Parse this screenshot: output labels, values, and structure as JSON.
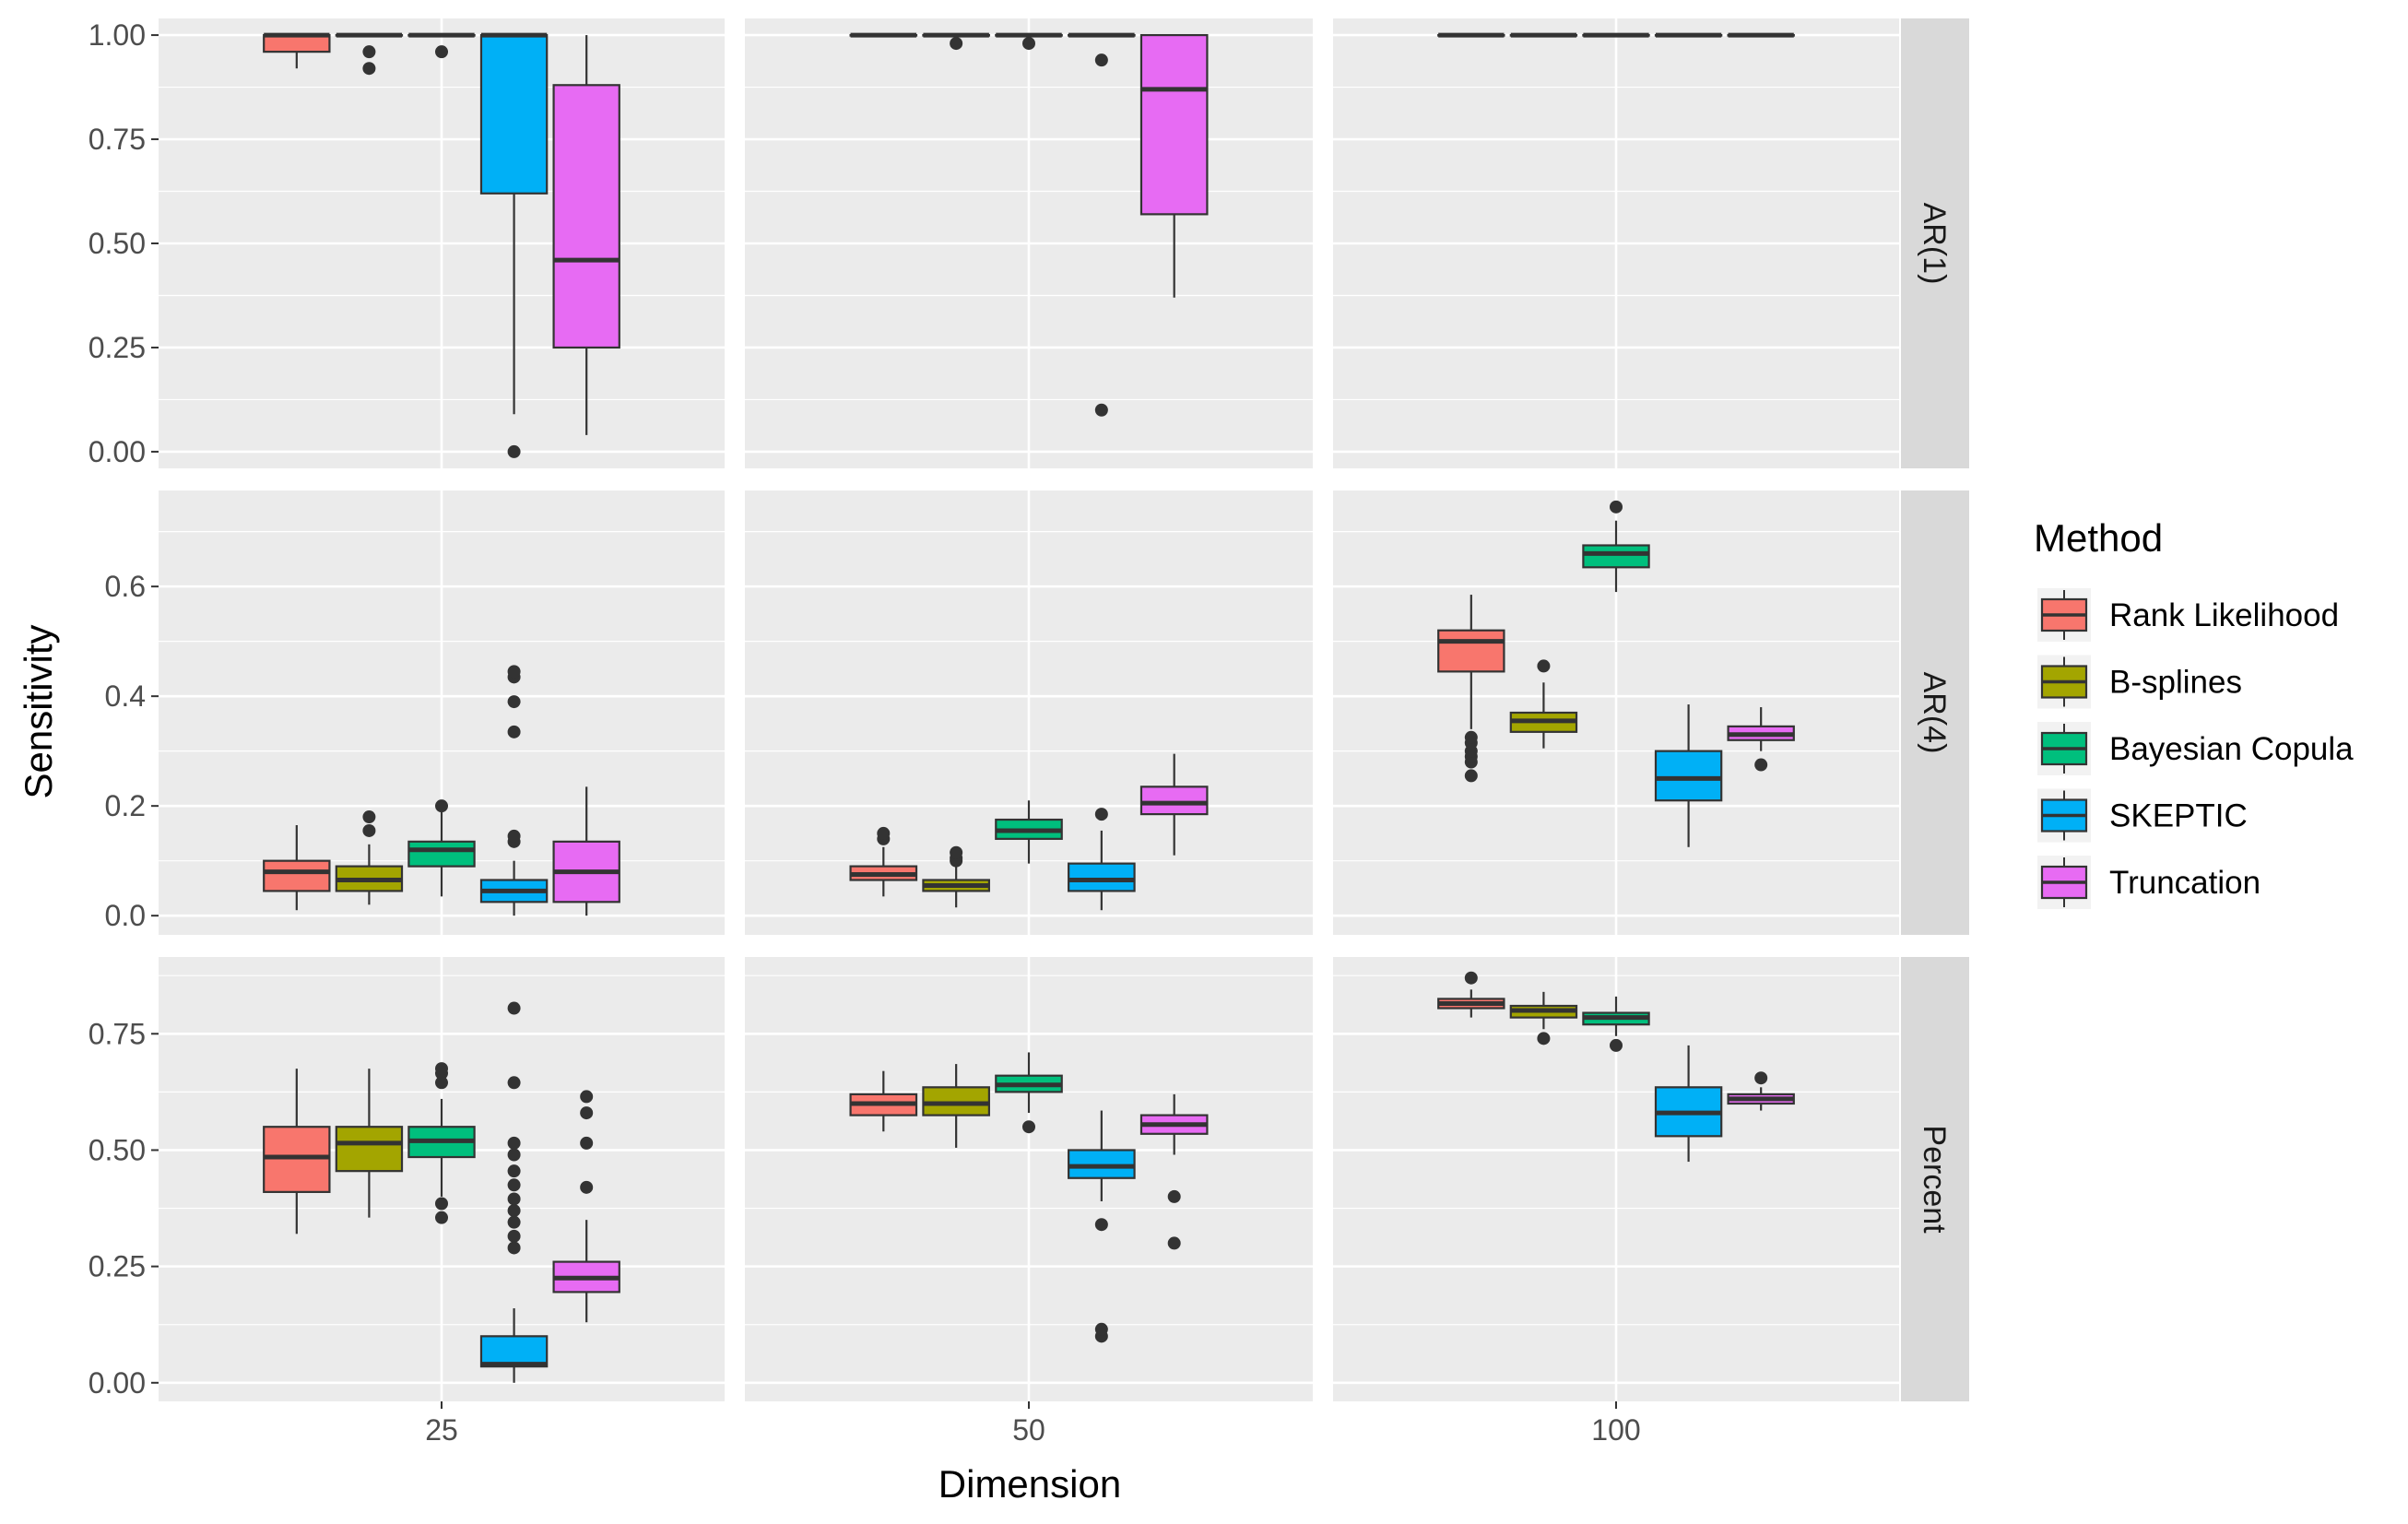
{
  "chart_data": {
    "type": "boxplot",
    "xlabel": "Dimension",
    "ylabel": "Sensitivity",
    "legend": {
      "title": "Method",
      "placement": "right",
      "entries": [
        "Rank Likelihood",
        "B-splines",
        "Bayesian Copula",
        "SKEPTIC",
        "Truncation"
      ]
    },
    "colors": {
      "Rank Likelihood": "#F8766D",
      "B-splines": "#A3A500",
      "Bayesian Copula": "#00BF7D",
      "SKEPTIC": "#00B0F6",
      "Truncation": "#E76BF3",
      "panel_bg": "#EBEBEB",
      "strip_bg": "#D9D9D9",
      "grid": "#FFFFFF"
    },
    "grid": true,
    "facet_columns": [
      "25",
      "50",
      "100"
    ],
    "facet_rows": [
      {
        "label": "AR(1)",
        "ylim": [
          -0.04,
          1.04
        ],
        "ticks": [
          0,
          0.25,
          0.5,
          0.75,
          1
        ],
        "tick_labels": [
          "0.00",
          "0.25",
          "0.50",
          "0.75",
          "1.00"
        ],
        "panels": [
          {
            "dimension": "25",
            "boxes": [
              {
                "method": "Rank Likelihood",
                "min": 0.92,
                "q1": 0.96,
                "median": 1.0,
                "q3": 1.0,
                "max": 1.0,
                "outliers": []
              },
              {
                "method": "B-splines",
                "min": 1.0,
                "q1": 1.0,
                "median": 1.0,
                "q3": 1.0,
                "max": 1.0,
                "outliers": [
                  0.96,
                  0.92
                ]
              },
              {
                "method": "Bayesian Copula",
                "min": 1.0,
                "q1": 1.0,
                "median": 1.0,
                "q3": 1.0,
                "max": 1.0,
                "outliers": [
                  0.96
                ]
              },
              {
                "method": "SKEPTIC",
                "min": 0.09,
                "q1": 0.62,
                "median": 1.0,
                "q3": 1.0,
                "max": 1.0,
                "outliers": [
                  0.0
                ]
              },
              {
                "method": "Truncation",
                "min": 0.04,
                "q1": 0.25,
                "median": 0.46,
                "q3": 0.88,
                "max": 1.0,
                "outliers": []
              }
            ]
          },
          {
            "dimension": "50",
            "boxes": [
              {
                "method": "Rank Likelihood",
                "min": 1.0,
                "q1": 1.0,
                "median": 1.0,
                "q3": 1.0,
                "max": 1.0,
                "outliers": []
              },
              {
                "method": "B-splines",
                "min": 1.0,
                "q1": 1.0,
                "median": 1.0,
                "q3": 1.0,
                "max": 1.0,
                "outliers": [
                  0.98
                ]
              },
              {
                "method": "Bayesian Copula",
                "min": 1.0,
                "q1": 1.0,
                "median": 1.0,
                "q3": 1.0,
                "max": 1.0,
                "outliers": [
                  0.98
                ]
              },
              {
                "method": "SKEPTIC",
                "min": 1.0,
                "q1": 1.0,
                "median": 1.0,
                "q3": 1.0,
                "max": 1.0,
                "outliers": [
                  0.94,
                  0.1
                ]
              },
              {
                "method": "Truncation",
                "min": 0.37,
                "q1": 0.57,
                "median": 0.87,
                "q3": 1.0,
                "max": 1.0,
                "outliers": []
              }
            ]
          },
          {
            "dimension": "100",
            "boxes": [
              {
                "method": "Rank Likelihood",
                "min": 1.0,
                "q1": 1.0,
                "median": 1.0,
                "q3": 1.0,
                "max": 1.0,
                "outliers": []
              },
              {
                "method": "B-splines",
                "min": 1.0,
                "q1": 1.0,
                "median": 1.0,
                "q3": 1.0,
                "max": 1.0,
                "outliers": []
              },
              {
                "method": "Bayesian Copula",
                "min": 1.0,
                "q1": 1.0,
                "median": 1.0,
                "q3": 1.0,
                "max": 1.0,
                "outliers": []
              },
              {
                "method": "SKEPTIC",
                "min": 1.0,
                "q1": 1.0,
                "median": 1.0,
                "q3": 1.0,
                "max": 1.0,
                "outliers": []
              },
              {
                "method": "Truncation",
                "min": 1.0,
                "q1": 1.0,
                "median": 1.0,
                "q3": 1.0,
                "max": 1.0,
                "outliers": []
              }
            ]
          }
        ]
      },
      {
        "label": "AR(4)",
        "ylim": [
          -0.035,
          0.775
        ],
        "ticks": [
          0,
          0.2,
          0.4,
          0.6
        ],
        "tick_labels": [
          "0.0",
          "0.2",
          "0.4",
          "0.6"
        ],
        "panels": [
          {
            "dimension": "25",
            "boxes": [
              {
                "method": "Rank Likelihood",
                "min": 0.01,
                "q1": 0.045,
                "median": 0.08,
                "q3": 0.1,
                "max": 0.165,
                "outliers": []
              },
              {
                "method": "B-splines",
                "min": 0.02,
                "q1": 0.045,
                "median": 0.065,
                "q3": 0.09,
                "max": 0.13,
                "outliers": [
                  0.155,
                  0.18
                ]
              },
              {
                "method": "Bayesian Copula",
                "min": 0.035,
                "q1": 0.09,
                "median": 0.12,
                "q3": 0.135,
                "max": 0.19,
                "outliers": [
                  0.2
                ]
              },
              {
                "method": "SKEPTIC",
                "min": 0.0,
                "q1": 0.025,
                "median": 0.045,
                "q3": 0.065,
                "max": 0.1,
                "outliers": [
                  0.135,
                  0.145,
                  0.335,
                  0.39,
                  0.435,
                  0.445
                ]
              },
              {
                "method": "Truncation",
                "min": 0.0,
                "q1": 0.025,
                "median": 0.08,
                "q3": 0.135,
                "max": 0.235,
                "outliers": []
              }
            ]
          },
          {
            "dimension": "50",
            "boxes": [
              {
                "method": "Rank Likelihood",
                "min": 0.035,
                "q1": 0.065,
                "median": 0.075,
                "q3": 0.09,
                "max": 0.125,
                "outliers": [
                  0.14,
                  0.15
                ]
              },
              {
                "method": "B-splines",
                "min": 0.015,
                "q1": 0.045,
                "median": 0.055,
                "q3": 0.065,
                "max": 0.09,
                "outliers": [
                  0.1,
                  0.105,
                  0.115
                ]
              },
              {
                "method": "Bayesian Copula",
                "min": 0.095,
                "q1": 0.14,
                "median": 0.155,
                "q3": 0.175,
                "max": 0.21,
                "outliers": []
              },
              {
                "method": "SKEPTIC",
                "min": 0.01,
                "q1": 0.045,
                "median": 0.065,
                "q3": 0.095,
                "max": 0.155,
                "outliers": [
                  0.185
                ]
              },
              {
                "method": "Truncation",
                "min": 0.11,
                "q1": 0.185,
                "median": 0.205,
                "q3": 0.235,
                "max": 0.295,
                "outliers": []
              }
            ]
          },
          {
            "dimension": "100",
            "boxes": [
              {
                "method": "Rank Likelihood",
                "min": 0.34,
                "q1": 0.445,
                "median": 0.5,
                "q3": 0.52,
                "max": 0.585,
                "outliers": [
                  0.255,
                  0.28,
                  0.29,
                  0.3,
                  0.315,
                  0.325
                ]
              },
              {
                "method": "B-splines",
                "min": 0.305,
                "q1": 0.335,
                "median": 0.355,
                "q3": 0.37,
                "max": 0.425,
                "outliers": [
                  0.455
                ]
              },
              {
                "method": "Bayesian Copula",
                "min": 0.59,
                "q1": 0.635,
                "median": 0.66,
                "q3": 0.675,
                "max": 0.72,
                "outliers": [
                  0.745
                ]
              },
              {
                "method": "SKEPTIC",
                "min": 0.125,
                "q1": 0.21,
                "median": 0.25,
                "q3": 0.3,
                "max": 0.385,
                "outliers": []
              },
              {
                "method": "Truncation",
                "min": 0.3,
                "q1": 0.32,
                "median": 0.33,
                "q3": 0.345,
                "max": 0.38,
                "outliers": [
                  0.275
                ]
              }
            ]
          }
        ]
      },
      {
        "label": "Percent",
        "ylim": [
          -0.04,
          0.915
        ],
        "ticks": [
          0,
          0.25,
          0.5,
          0.75
        ],
        "tick_labels": [
          "0.00",
          "0.25",
          "0.50",
          "0.75"
        ],
        "panels": [
          {
            "dimension": "25",
            "boxes": [
              {
                "method": "Rank Likelihood",
                "min": 0.32,
                "q1": 0.41,
                "median": 0.485,
                "q3": 0.55,
                "max": 0.675,
                "outliers": []
              },
              {
                "method": "B-splines",
                "min": 0.355,
                "q1": 0.455,
                "median": 0.515,
                "q3": 0.55,
                "max": 0.675,
                "outliers": []
              },
              {
                "method": "Bayesian Copula",
                "min": 0.4,
                "q1": 0.485,
                "median": 0.52,
                "q3": 0.55,
                "max": 0.61,
                "outliers": [
                  0.355,
                  0.385,
                  0.645,
                  0.665,
                  0.675
                ]
              },
              {
                "method": "SKEPTIC",
                "min": 0.0,
                "q1": 0.035,
                "median": 0.04,
                "q3": 0.1,
                "max": 0.16,
                "outliers": [
                  0.29,
                  0.315,
                  0.345,
                  0.37,
                  0.395,
                  0.425,
                  0.455,
                  0.49,
                  0.515,
                  0.645,
                  0.805
                ]
              },
              {
                "method": "Truncation",
                "min": 0.13,
                "q1": 0.195,
                "median": 0.225,
                "q3": 0.26,
                "max": 0.35,
                "outliers": [
                  0.42,
                  0.515,
                  0.58,
                  0.615
                ]
              }
            ]
          },
          {
            "dimension": "50",
            "boxes": [
              {
                "method": "Rank Likelihood",
                "min": 0.54,
                "q1": 0.575,
                "median": 0.6,
                "q3": 0.62,
                "max": 0.67,
                "outliers": []
              },
              {
                "method": "B-splines",
                "min": 0.505,
                "q1": 0.575,
                "median": 0.6,
                "q3": 0.635,
                "max": 0.685,
                "outliers": []
              },
              {
                "method": "Bayesian Copula",
                "min": 0.58,
                "q1": 0.625,
                "median": 0.64,
                "q3": 0.66,
                "max": 0.71,
                "outliers": [
                  0.55
                ]
              },
              {
                "method": "SKEPTIC",
                "min": 0.39,
                "q1": 0.44,
                "median": 0.465,
                "q3": 0.5,
                "max": 0.585,
                "outliers": [
                  0.1,
                  0.115,
                  0.34
                ]
              },
              {
                "method": "Truncation",
                "min": 0.49,
                "q1": 0.535,
                "median": 0.555,
                "q3": 0.575,
                "max": 0.62,
                "outliers": [
                  0.3,
                  0.4
                ]
              }
            ]
          },
          {
            "dimension": "100",
            "boxes": [
              {
                "method": "Rank Likelihood",
                "min": 0.785,
                "q1": 0.805,
                "median": 0.815,
                "q3": 0.825,
                "max": 0.845,
                "outliers": [
                  0.87
                ]
              },
              {
                "method": "B-splines",
                "min": 0.76,
                "q1": 0.785,
                "median": 0.8,
                "q3": 0.81,
                "max": 0.84,
                "outliers": [
                  0.74
                ]
              },
              {
                "method": "Bayesian Copula",
                "min": 0.745,
                "q1": 0.77,
                "median": 0.785,
                "q3": 0.795,
                "max": 0.83,
                "outliers": [
                  0.725
                ]
              },
              {
                "method": "SKEPTIC",
                "min": 0.475,
                "q1": 0.53,
                "median": 0.58,
                "q3": 0.635,
                "max": 0.725,
                "outliers": []
              },
              {
                "method": "Truncation",
                "min": 0.585,
                "q1": 0.6,
                "median": 0.61,
                "q3": 0.62,
                "max": 0.635,
                "outliers": [
                  0.655
                ]
              }
            ]
          }
        ]
      }
    ]
  }
}
